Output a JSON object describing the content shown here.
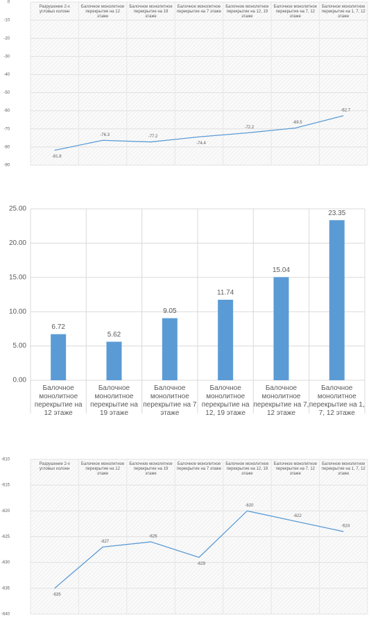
{
  "chart_data": [
    {
      "type": "line",
      "categories": [
        "Разрушение 2-х угловых колонн",
        "Балочное монолитное перекрытие на 12 этаже",
        "Балочное монолитное перекрытие на 19 этаже",
        "Балочное монолитное перекрытие на 7 этаже",
        "Балочное монолитное перекрытие на 12, 19 этаже",
        "Балочное монолитное перекрытие на 7, 12 этаже",
        "Балочное монолитное перекрытие на 1, 7, 12 этаже"
      ],
      "values": [
        -81.8,
        -76.3,
        -77.2,
        -74.4,
        -72.2,
        -69.5,
        -62.7
      ],
      "color": "#5b9bd5",
      "ylim": [
        -90,
        0
      ],
      "yticks": [
        0,
        -10,
        -20,
        -30,
        -40,
        -50,
        -60,
        -70,
        -80,
        -90
      ],
      "grid": true
    },
    {
      "type": "bar",
      "categories": [
        "Балочное монолитное перекрытие на 12 этаже",
        "Балочное монолитное перекрытие на 19 этаже",
        "Балочное монолитное перекрытие на 7 этаже",
        "Балочное монолитное перекрытие на 12, 19 этаже",
        "Балочное монолитное перекрытие на 7, 12 этаже",
        "Балочное монолитное перекрытие на 1, 7, 12 этаже"
      ],
      "values": [
        6.72,
        5.62,
        9.05,
        11.74,
        15.04,
        23.35
      ],
      "color": "#5b9bd5",
      "ylim": [
        0,
        25
      ],
      "yticks": [
        {
          "value": 0,
          "label": "0.00"
        },
        {
          "value": 5,
          "label": "5.00"
        },
        {
          "value": 10,
          "label": "10.00"
        },
        {
          "value": 15,
          "label": "15.00"
        },
        {
          "value": 20,
          "label": "20.00"
        },
        {
          "value": 25,
          "label": "25.00"
        }
      ],
      "grid": true
    },
    {
      "type": "line",
      "categories": [
        "Разрушение 2-х угловых колонн",
        "Балочное монолитное перекрытие на 12 этаже",
        "Балочное монолитное перекрытие на 19 этаже",
        "Балочное монолитное перекрытие на 7 этаже",
        "Балочное монолитное перекрытие на 12, 19 этаже",
        "Балочное монолитное перекрытие на 7, 12 этаже",
        "Балочное монолитное перекрытие на 1, 7, 12 этаже"
      ],
      "values": [
        -635,
        -627,
        -626,
        -629,
        -620,
        -622,
        -624
      ],
      "color": "#5b9bd5",
      "ylim": [
        -640,
        -610
      ],
      "yticks": [
        -610,
        -615,
        -620,
        -625,
        -630,
        -635,
        -640
      ],
      "grid": true
    }
  ]
}
